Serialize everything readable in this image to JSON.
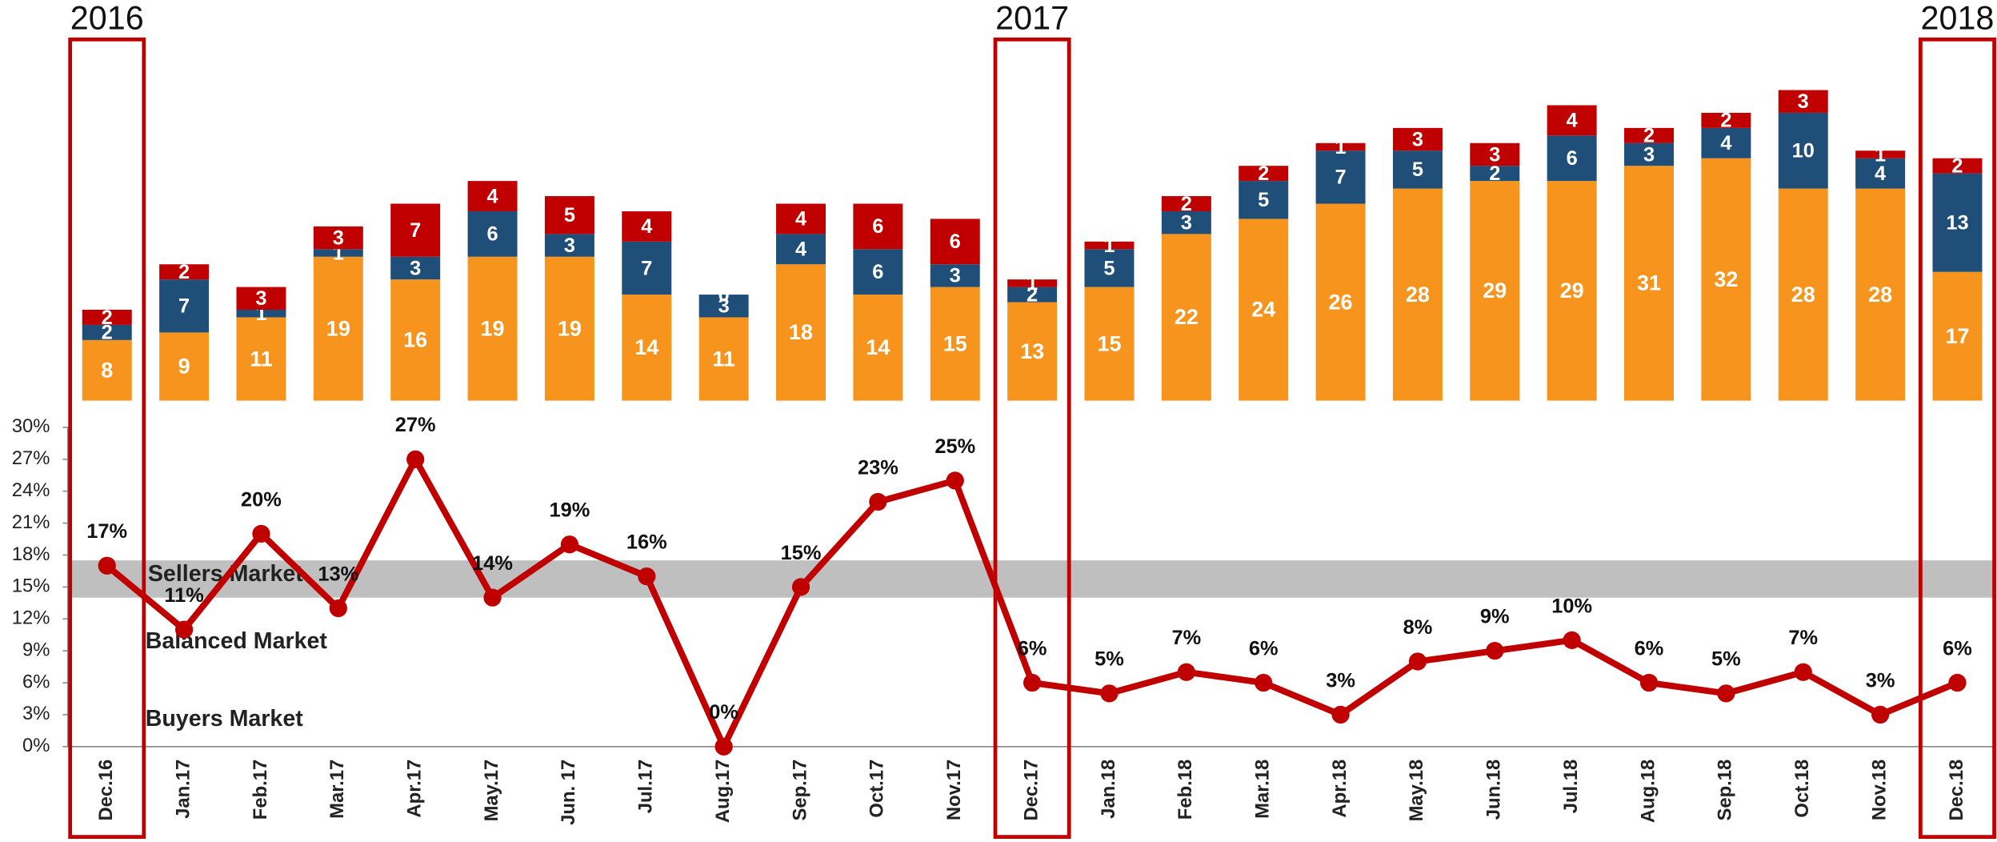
{
  "chart_data": [
    {
      "type": "bar",
      "stacked": true,
      "ylim": [
        0,
        45
      ],
      "series": [
        {
          "color": "#f7941d",
          "values": [
            8,
            9,
            11,
            19,
            16,
            19,
            19,
            14,
            11,
            18,
            14,
            15,
            13,
            15,
            22,
            24,
            26,
            28,
            29,
            29,
            31,
            32,
            28,
            28,
            17
          ]
        },
        {
          "color": "#1f4e79",
          "values": [
            2,
            7,
            1,
            1,
            3,
            6,
            3,
            7,
            3,
            4,
            6,
            3,
            2,
            5,
            3,
            5,
            7,
            5,
            2,
            6,
            3,
            4,
            10,
            4,
            13
          ]
        },
        {
          "color": "#c00000",
          "values": [
            2,
            2,
            3,
            3,
            7,
            4,
            5,
            4,
            0,
            4,
            6,
            6,
            1,
            1,
            2,
            2,
            1,
            3,
            3,
            4,
            2,
            2,
            3,
            1,
            2
          ]
        }
      ]
    },
    {
      "type": "line",
      "categories": [
        "Dec.16",
        "Jan.17",
        "Feb.17",
        "Mar.17",
        "Apr.17",
        "May.17",
        "Jun. 17",
        "Jul.17",
        "Aug.17",
        "Sep.17",
        "Oct.17",
        "Nov.17",
        "Dec.17",
        "Jan.18",
        "Feb.18",
        "Mar.18",
        "Apr.18",
        "May.18",
        "Jun.18",
        "Jul.18",
        "Aug.18",
        "Sep.18",
        "Oct.18",
        "Nov.18",
        "Dec.18"
      ],
      "series": [
        {
          "color": "#c00000",
          "values": [
            17,
            11,
            20,
            13,
            27,
            14,
            19,
            16,
            0,
            15,
            23,
            25,
            6,
            5,
            7,
            6,
            3,
            8,
            9,
            10,
            6,
            5,
            7,
            3,
            6
          ],
          "value_labels": [
            "17%",
            "11%",
            "20%",
            "13%",
            "27%",
            "14%",
            "19%",
            "16%",
            "0%",
            "15%",
            "23%",
            "25%",
            "6%",
            "5%",
            "7%",
            "6%",
            "3%",
            "8%",
            "9%",
            "10%",
            "6%",
            "5%",
            "7%",
            "3%",
            "6%"
          ]
        }
      ],
      "ylim": [
        0,
        30
      ],
      "yticks": [
        {
          "value": 0,
          "label": "0%"
        },
        {
          "value": 3,
          "label": "3%"
        },
        {
          "value": 6,
          "label": "6%"
        },
        {
          "value": 9,
          "label": "9%"
        },
        {
          "value": 12,
          "label": "12%"
        },
        {
          "value": 15,
          "label": "15%"
        },
        {
          "value": 18,
          "label": "18%"
        },
        {
          "value": 21,
          "label": "21%"
        },
        {
          "value": 24,
          "label": "24%"
        },
        {
          "value": 27,
          "label": "27%"
        },
        {
          "value": 30,
          "label": "30%"
        }
      ],
      "bands": [
        {
          "label": "Sellers Market",
          "range": [
            14,
            17.5
          ],
          "color": "#bfbfbf"
        }
      ],
      "annotations": [
        "Balanced Market",
        "Buyers Market"
      ],
      "highlights": [
        {
          "label": "2016",
          "category": "Dec.16"
        },
        {
          "label": "2017",
          "category": "Dec.17"
        },
        {
          "label": "2018",
          "category": "Dec.18"
        }
      ],
      "highlight_color": "#c00000"
    }
  ]
}
